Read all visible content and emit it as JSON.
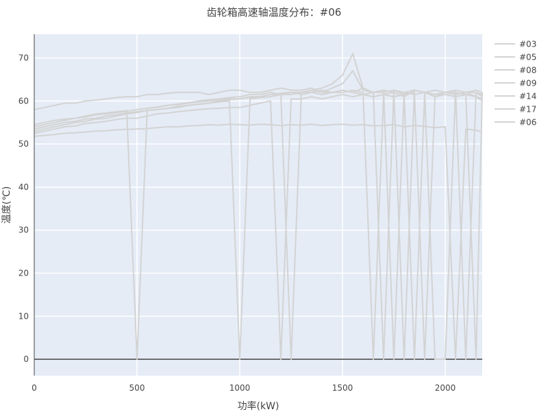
{
  "chart_data": {
    "type": "line",
    "title": "齿轮箱高速轴温度分布：#06",
    "xlabel": "功率(kW)",
    "ylabel": "温度(℃)",
    "xlim": [
      0,
      2180
    ],
    "ylim": [
      -3.8,
      75.5
    ],
    "xticks": [
      0,
      500,
      1000,
      1500,
      2000
    ],
    "yticks": [
      0,
      10,
      20,
      30,
      40,
      50,
      60,
      70
    ],
    "grid": true,
    "legend_position": "right",
    "plot_bgcolor": "#e5ecf6",
    "line_color": "#d3d3d3",
    "x": [
      0,
      50,
      100,
      150,
      200,
      250,
      300,
      350,
      400,
      450,
      500,
      550,
      600,
      650,
      700,
      750,
      800,
      850,
      900,
      950,
      1000,
      1050,
      1100,
      1150,
      1200,
      1250,
      1300,
      1350,
      1400,
      1450,
      1500,
      1550,
      1600,
      1650,
      1700,
      1750,
      1800,
      1850,
      1900,
      1950,
      2000,
      2050,
      2100,
      2150,
      2180
    ],
    "series": [
      {
        "name": "#03",
        "values": [
          58,
          58.5,
          59,
          59.5,
          59.5,
          60,
          60.2,
          60.5,
          60.8,
          61,
          61,
          61.5,
          61.5,
          61.8,
          62,
          62,
          62,
          61.5,
          62,
          62.5,
          62.5,
          62,
          62,
          62.5,
          63,
          62.5,
          62.5,
          63,
          62,
          62,
          62.5,
          62,
          63,
          62,
          62.5,
          62,
          0,
          62.5,
          62,
          61.5,
          62,
          62,
          61.5,
          0,
          62
        ]
      },
      {
        "name": "#05",
        "values": [
          54.5,
          55,
          55.5,
          55.8,
          56,
          56.5,
          57,
          57.2,
          57.5,
          57.8,
          0,
          58.3,
          58.5,
          59,
          59.2,
          59.5,
          59.8,
          60,
          60.2,
          60.5,
          60.5,
          61,
          61,
          61.5,
          61.5,
          62,
          61.5,
          62,
          62.5,
          62,
          62,
          62.5,
          62,
          0,
          61.5,
          62,
          61,
          62.5,
          62,
          61,
          62,
          61.5,
          62,
          61,
          60
        ]
      },
      {
        "name": "#08",
        "values": [
          53.5,
          54,
          54.5,
          55,
          55.3,
          55.8,
          56,
          56.5,
          56.8,
          57.2,
          57.5,
          57.8,
          58,
          58.3,
          58.5,
          59,
          59.2,
          59.5,
          59.8,
          60,
          0,
          60.5,
          60.8,
          61,
          61.5,
          61.5,
          62,
          62,
          61.5,
          62,
          62.5,
          62,
          61.5,
          62,
          0,
          62.5,
          62,
          61.5,
          62,
          62.5,
          62,
          61.5,
          62,
          62.5,
          62
        ]
      },
      {
        "name": "#09",
        "values": [
          52.5,
          53,
          53.5,
          54,
          54.2,
          54.8,
          55,
          55.3,
          55.7,
          56,
          56,
          56.5,
          57,
          57.2,
          57.5,
          57.8,
          58,
          58.2,
          58.3,
          58.5,
          58.5,
          59,
          59.5,
          60,
          0,
          60.5,
          60.5,
          61,
          60.5,
          61,
          61.5,
          61,
          61.5,
          61,
          61.5,
          61,
          61.5,
          62,
          0,
          61,
          61.5,
          61,
          61.5,
          61,
          60.5
        ]
      },
      {
        "name": "#14",
        "values": [
          51.8,
          52,
          52.2,
          52.5,
          52.6,
          52.8,
          53,
          53.1,
          53.3,
          53.4,
          53.5,
          53.6,
          53.8,
          54,
          54,
          54.2,
          54.3,
          54.5,
          54.4,
          54.6,
          54.5,
          54.4,
          54.6,
          54.5,
          54.3,
          54.5,
          54.4,
          54.6,
          54.3,
          54.5,
          54.6,
          54.4,
          54.5,
          54.2,
          54.3,
          54.5,
          54,
          54.3,
          54.1,
          53.8,
          54,
          0,
          53.5,
          53.2,
          52.8
        ]
      },
      {
        "name": "#17",
        "values": [
          54,
          54.5,
          55,
          55.5,
          56,
          56.3,
          56.8,
          57,
          57.3,
          57.6,
          58,
          58.3,
          58.6,
          59,
          59.3,
          59.6,
          60,
          60.3,
          60.5,
          60.8,
          61,
          61.5,
          61.5,
          62,
          61.5,
          0,
          62,
          62.5,
          63,
          64,
          66,
          71,
          63,
          62,
          62.5,
          0,
          62,
          62.5,
          62,
          61.5,
          62,
          62.5,
          0,
          62,
          61
        ]
      },
      {
        "name": "#06",
        "values": [
          53,
          53.5,
          54,
          54.5,
          55,
          55.3,
          55.8,
          56,
          56.5,
          57,
          57.3,
          57.8,
          58,
          58.3,
          58.8,
          59,
          59.3,
          59.5,
          60,
          60.3,
          60.5,
          60.8,
          61,
          61.5,
          61.8,
          62,
          62,
          62.5,
          62,
          63,
          64,
          67,
          62.5,
          62,
          62,
          62.5,
          61.5,
          0,
          62,
          0,
          0,
          62.5,
          62,
          62,
          61.5
        ]
      }
    ]
  }
}
